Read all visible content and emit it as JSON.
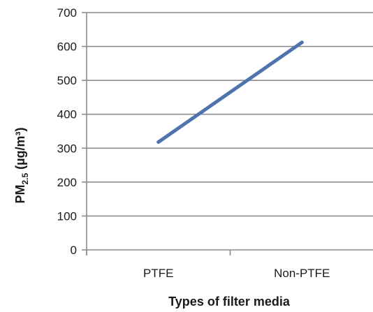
{
  "chart_data": {
    "type": "line",
    "categories": [
      "PTFE",
      "Non-PTFE"
    ],
    "series": [
      {
        "values": [
          318,
          612
        ],
        "color": "#4f73ad"
      }
    ],
    "xlabel": "Types of filter media",
    "ylabel": {
      "prefix": "PM",
      "subscript": "2.5",
      "unit": " (µg/m³)"
    },
    "ylim": [
      0,
      700
    ],
    "yticks": [
      "0",
      "100",
      "200",
      "300",
      "400",
      "500",
      "600",
      "700"
    ],
    "grid": true,
    "legend": "none",
    "grid_color": "#8c8c8c",
    "axis_color": "#8c8c8c"
  }
}
